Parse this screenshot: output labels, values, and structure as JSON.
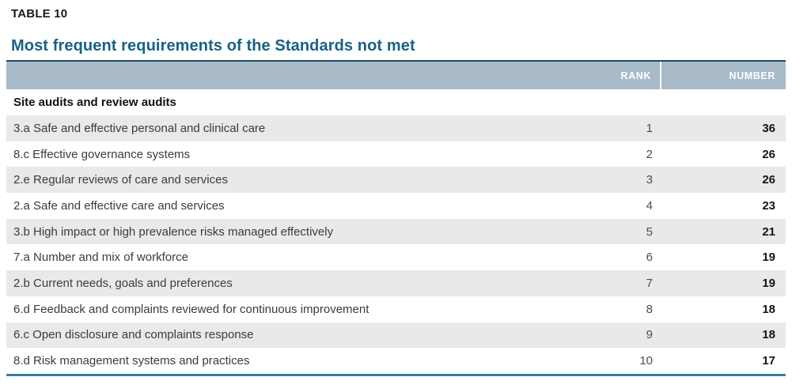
{
  "page": {
    "eyebrow": "TABLE 10",
    "title": "Most frequent requirements of the Standards not met"
  },
  "table": {
    "columns": {
      "rank": "RANK",
      "number": "NUMBER"
    },
    "section": "Site audits and review audits",
    "rows": [
      {
        "label": "3.a Safe and effective personal and clinical care",
        "rank": "1",
        "number": "36"
      },
      {
        "label": "8.c Effective governance systems",
        "rank": "2",
        "number": "26"
      },
      {
        "label": "2.e Regular reviews of care and services",
        "rank": "3",
        "number": "26"
      },
      {
        "label": "2.a Safe and effective care and services",
        "rank": "4",
        "number": "23"
      },
      {
        "label": "3.b High impact or high prevalence risks managed effectively",
        "rank": "5",
        "number": "21"
      },
      {
        "label": "7.a Number and mix of workforce",
        "rank": "6",
        "number": "19"
      },
      {
        "label": "2.b Current needs, goals and preferences",
        "rank": "7",
        "number": "19"
      },
      {
        "label": "6.d Feedback and complaints reviewed for continuous improvement",
        "rank": "8",
        "number": "18"
      },
      {
        "label": "6.c Open disclosure and complaints response",
        "rank": "9",
        "number": "18"
      },
      {
        "label": "8.d Risk management systems and practices",
        "rank": "10",
        "number": "17"
      }
    ]
  },
  "colors": {
    "title": "#176286",
    "header_background": "#a9bac8",
    "row_alternate": "#e9e9e9",
    "top_rule": "#1d4a5c",
    "bottom_rule": "#35829a"
  }
}
